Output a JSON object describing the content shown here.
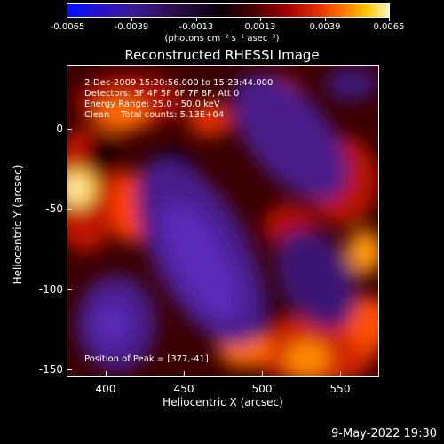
{
  "colorbar": {
    "ticks": [
      "-0.0065",
      "-0.0039",
      "-0.0013",
      "0.0013",
      "0.0039",
      "0.0065"
    ],
    "unit": "(photons cm⁻² s⁻¹ asec⁻²)"
  },
  "title": "Reconstructed RHESSI Image",
  "annotations": {
    "time_range": "2-Dec-2009 15:20:56.000 to 15:23:44.000",
    "detectors": "Detectors: 3F 4F 5F 6F 7F 8F, Att 0",
    "energy": "Energy Range: 25.0 - 50.0 keV",
    "clean": "Clean    Total counts: 5.13E+04",
    "peak": "Position of Peak = [377,-41]"
  },
  "axes": {
    "x_label": "Heliocentric X (arcsec)",
    "y_label": "Heliocentric Y (arcsec)",
    "x_ticks": [
      "400",
      "450",
      "500",
      "550"
    ],
    "y_ticks": [
      "0",
      "-50",
      "-100",
      "-150"
    ]
  },
  "footer_date": "9-May-2022 19:30"
}
